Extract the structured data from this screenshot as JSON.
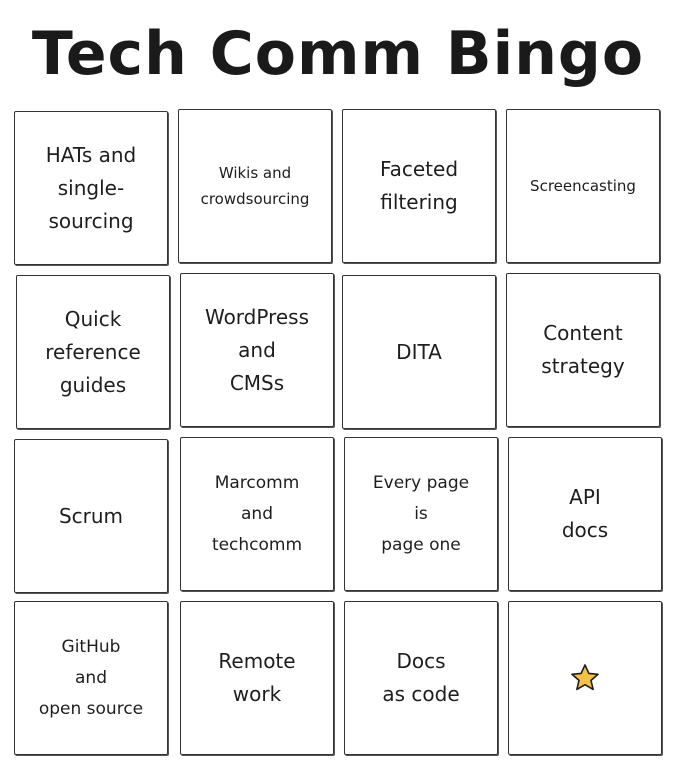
{
  "title": "Tech Comm Bingo",
  "accent": "#f5c242",
  "cells": [
    {
      "label": "HATs and\nsingle-\nsourcing"
    },
    {
      "label": "Wikis and\ncrowdsourcing"
    },
    {
      "label": "Faceted\nfiltering"
    },
    {
      "label": "Screencasting"
    },
    {
      "label": "Quick\nreference\nguides"
    },
    {
      "label": "WordPress\nand\nCMSs"
    },
    {
      "label": "DITA"
    },
    {
      "label": "Content\nstrategy"
    },
    {
      "label": "Scrum"
    },
    {
      "label": "Marcomm\nand\ntechcomm"
    },
    {
      "label": "Every page\nis\npage one"
    },
    {
      "label": "API\ndocs"
    },
    {
      "label": "GitHub\nand\nopen source"
    },
    {
      "label": "Remote\nwork"
    },
    {
      "label": "Docs\nas code"
    },
    {
      "label": "",
      "icon": "star-icon"
    }
  ]
}
